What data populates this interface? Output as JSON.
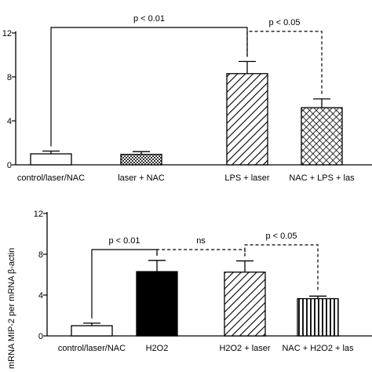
{
  "chart_data": [
    {
      "type": "bar",
      "categories": [
        "control/laser/NAC",
        "laser + NAC",
        "LPS + laser",
        "NAC + LPS + las"
      ],
      "values": [
        1.0,
        0.95,
        8.3,
        5.2
      ],
      "errors": [
        0.25,
        0.25,
        1.1,
        0.8
      ],
      "patterns": [
        "white",
        "checker",
        "diag",
        "crosshatch"
      ],
      "yticks": [
        "0",
        "4",
        "8",
        "12"
      ],
      "ylim": [
        0,
        12
      ],
      "ylabel": "",
      "annotations": [
        {
          "from": 0,
          "to": 2,
          "text": "p < 0.01",
          "dashed": false
        },
        {
          "from": 2,
          "to": 3,
          "text": "p < 0.05",
          "dashed": true
        }
      ]
    },
    {
      "type": "bar",
      "categories": [
        "control/laser/NAC",
        "H2O2",
        "H2O2 + laser",
        "NAC + H2O2 + las"
      ],
      "values": [
        1.0,
        6.3,
        6.25,
        3.65
      ],
      "errors": [
        0.25,
        1.1,
        1.1,
        0.25
      ],
      "patterns": [
        "white",
        "black",
        "diag",
        "vertical"
      ],
      "yticks": [
        "0",
        "4",
        "8",
        "12"
      ],
      "ylim": [
        0,
        12
      ],
      "ylabel": "mRNA MIP-2 per mRNA β-actin",
      "annotations": [
        {
          "from": 0,
          "to": 1,
          "text": "p < 0.01",
          "dashed": false
        },
        {
          "from": 1,
          "to": 2,
          "text": "ns",
          "dashed": true
        },
        {
          "from": 2,
          "to": 3,
          "text": "p < 0.05",
          "dashed": true
        }
      ]
    }
  ]
}
